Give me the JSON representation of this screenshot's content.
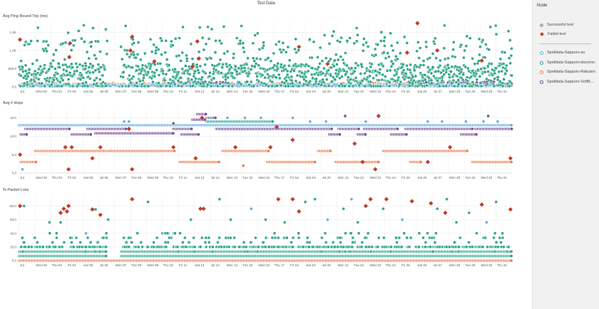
{
  "page_title": "Test Data",
  "legend": {
    "title": "Node",
    "status_items": [
      {
        "label": "Successful test",
        "marker": "circle",
        "color": "#aaaaaa"
      },
      {
        "label": "Failed test",
        "marker": "diamond",
        "color": "#c0392b"
      }
    ],
    "series_items": [
      {
        "label": "Spelldata-Sapporo-au",
        "color": "#5ba4dc"
      },
      {
        "label": "Spelldata-Sapporo-docomo",
        "color": "#1f9e80"
      },
      {
        "label": "Spelldata-Sapporo-Rakuten",
        "color": "#e8743b"
      },
      {
        "label": "Spelldata-Sapporo-SoftB...",
        "color": "#6b3d8a"
      }
    ]
  },
  "chart_data": [
    {
      "type": "scatter",
      "title": "Avg Ping Round Trip (ms)",
      "x_ticks": [
        "Jul",
        "Wed 02",
        "Thu 03",
        "Fri 04",
        "Sat 05",
        "Jul 06",
        "Mon 07",
        "Tue 08",
        "Wed 09",
        "Thu 10",
        "Fri 11",
        "Sat 12",
        "Jul 13",
        "Mon 14",
        "Tue 15",
        "Wed 16",
        "Thu 17",
        "Fri 18",
        "Sat 19",
        "Jul 20",
        "Mon 21",
        "Tue 22",
        "Wed 23",
        "Thu 24",
        "Fri 25",
        "Sat 26",
        "Jul 27",
        "Mon 28",
        "Tue 29",
        "Wed 30",
        "Thu 31"
      ],
      "xlim": [
        0,
        31
      ],
      "y_ticks": [
        "0.0",
        "500.0",
        "1.0K",
        "1.5K"
      ],
      "y_tick_values": [
        0,
        500,
        1000,
        1500
      ],
      "ylim": [
        0,
        1800
      ],
      "series": [
        {
          "name": "Spelldata-Sapporo-au",
          "color": "#5ba4dc",
          "band_days": [
            [
              0,
              31
            ]
          ],
          "base": 40,
          "spread": 25
        },
        {
          "name": "Spelldata-Sapporo-docomo",
          "color": "#1f9e80",
          "band_days": [
            [
              0,
              5.5
            ],
            [
              6.4,
              31
            ]
          ],
          "base": 300,
          "spread": 350
        },
        {
          "name": "Spelldata-Sapporo-Rakuten",
          "color": "#e8743b",
          "band_days": [
            [
              0,
              31
            ]
          ],
          "base": 60,
          "spread": 40
        },
        {
          "name": "Spelldata-Sapporo-SoftB...",
          "color": "#6b3d8a",
          "band_days": [
            [
              10,
              13
            ],
            [
              24.5,
              31
            ]
          ],
          "base": 80,
          "spread": 60
        }
      ],
      "failed_points": [
        {
          "x": 0.05,
          "y": 1300
        },
        {
          "x": 3.2,
          "y": 1200
        },
        {
          "x": 3.15,
          "y": 820
        },
        {
          "x": 7.1,
          "y": 1380
        },
        {
          "x": 7.0,
          "y": 1000
        },
        {
          "x": 8.5,
          "y": 700
        },
        {
          "x": 10.9,
          "y": 560
        },
        {
          "x": 11.2,
          "y": 1250
        },
        {
          "x": 17.6,
          "y": 1100
        },
        {
          "x": 19.4,
          "y": 630
        },
        {
          "x": 24.4,
          "y": 940
        },
        {
          "x": 25.05,
          "y": 1750
        },
        {
          "x": 26.3,
          "y": 1000
        },
        {
          "x": 29.1,
          "y": 720
        },
        {
          "x": 11.3,
          "y": 780
        }
      ]
    },
    {
      "type": "scatter",
      "title": "Avg # Hops",
      "x_ticks": [
        "Jul",
        "Wed 02",
        "Thu 03",
        "Fri 04",
        "Sat 05",
        "Jul 06",
        "Mon 07",
        "Tue 08",
        "Wed 09",
        "Thu 10",
        "Fri 11",
        "Sat 12",
        "Jul 13",
        "Mon 14",
        "Tue 15",
        "Wed 16",
        "Thu 17",
        "Fri 18",
        "Sat 19",
        "Jul 20",
        "Mon 21",
        "Tue 22",
        "Wed 23",
        "Thu 24",
        "Fri 25",
        "Sat 26",
        "Jul 27",
        "Mon 28",
        "Tue 29",
        "Wed 30",
        "Thu 31"
      ],
      "xlim": [
        0,
        31
      ],
      "y_ticks": [
        "0.0",
        "5.0",
        "10.0",
        "15.0"
      ],
      "y_tick_values": [
        0,
        5,
        10,
        15
      ],
      "ylim": [
        0,
        18
      ],
      "segments": [
        {
          "series": "Spelldata-Sapporo-au",
          "color": "#5ba4dc",
          "x0": 0,
          "x1": 31,
          "y": 13
        },
        {
          "series": "Spelldata-Sapporo-docomo",
          "color": "#1f9e80",
          "x0": 11.8,
          "x1": 12.4,
          "y": 14
        },
        {
          "series": "Spelldata-Sapporo-docomo",
          "color": "#1f9e80",
          "x0": 12.1,
          "x1": 16,
          "y": 14
        },
        {
          "series": "Spelldata-Sapporo-docomo",
          "color": "#1f9e80",
          "x0": 12.6,
          "x1": 15.8,
          "y": 11.8
        },
        {
          "series": "Spelldata-Sapporo-Rakuten",
          "color": "#e8743b",
          "x0": 0.1,
          "x1": 1.1,
          "y": 3
        },
        {
          "series": "Spelldata-Sapporo-Rakuten",
          "color": "#e8743b",
          "x0": 1,
          "x1": 9.8,
          "y": 6
        },
        {
          "series": "Spelldata-Sapporo-Rakuten",
          "color": "#e8743b",
          "x0": 10.1,
          "x1": 12.6,
          "y": 3
        },
        {
          "series": "Spelldata-Sapporo-Rakuten",
          "color": "#e8743b",
          "x0": 12.8,
          "x1": 15.7,
          "y": 6
        },
        {
          "series": "Spelldata-Sapporo-Rakuten",
          "color": "#e8743b",
          "x0": 15.6,
          "x1": 18.6,
          "y": 3
        },
        {
          "series": "Spelldata-Sapporo-Rakuten",
          "color": "#e8743b",
          "x0": 18.8,
          "x1": 19.6,
          "y": 6
        },
        {
          "series": "Spelldata-Sapporo-Rakuten",
          "color": "#e8743b",
          "x0": 19.9,
          "x1": 22.6,
          "y": 3
        },
        {
          "series": "Spelldata-Sapporo-Rakuten",
          "color": "#e8743b",
          "x0": 22.9,
          "x1": 28.2,
          "y": 6
        },
        {
          "series": "Spelldata-Sapporo-Rakuten",
          "color": "#e8743b",
          "x0": 28.5,
          "x1": 31,
          "y": 3
        },
        {
          "series": "Spelldata-Sapporo-Rakuten",
          "color": "#e8743b",
          "x0": 24.6,
          "x1": 25.3,
          "y": 3
        },
        {
          "series": "Spelldata-Sapporo-SoftB...",
          "color": "#6b3d8a",
          "x0": 0.1,
          "x1": 0.5,
          "y": 10.5
        },
        {
          "series": "Spelldata-Sapporo-SoftB...",
          "color": "#6b3d8a",
          "x0": 0.4,
          "x1": 3.2,
          "y": 12
        },
        {
          "series": "Spelldata-Sapporo-SoftB...",
          "color": "#6b3d8a",
          "x0": 3.3,
          "x1": 4.5,
          "y": 10.5
        },
        {
          "series": "Spelldata-Sapporo-SoftB...",
          "color": "#6b3d8a",
          "x0": 4.3,
          "x1": 6.7,
          "y": 12
        },
        {
          "series": "Spelldata-Sapporo-SoftB...",
          "color": "#6b3d8a",
          "x0": 4.8,
          "x1": 7.4,
          "y": 10.8
        },
        {
          "series": "Spelldata-Sapporo-SoftB...",
          "color": "#6b3d8a",
          "x0": 7.4,
          "x1": 9.7,
          "y": 10.8
        },
        {
          "series": "Spelldata-Sapporo-SoftB...",
          "color": "#6b3d8a",
          "x0": 9.7,
          "x1": 10.9,
          "y": 12
        },
        {
          "series": "Spelldata-Sapporo-SoftB...",
          "color": "#6b3d8a",
          "x0": 10.2,
          "x1": 11.3,
          "y": 10.5
        },
        {
          "series": "Spelldata-Sapporo-SoftB...",
          "color": "#6b3d8a",
          "x0": 10.9,
          "x1": 11.7,
          "y": 14.5
        },
        {
          "series": "Spelldata-Sapporo-SoftB...",
          "color": "#6b3d8a",
          "x0": 11.2,
          "x1": 11.8,
          "y": 16
        },
        {
          "series": "Spelldata-Sapporo-SoftB...",
          "color": "#6b3d8a",
          "x0": 11.8,
          "x1": 12.4,
          "y": 15
        },
        {
          "series": "Spelldata-Sapporo-SoftB...",
          "color": "#6b3d8a",
          "x0": 12.4,
          "x1": 19.7,
          "y": 12
        },
        {
          "series": "Spelldata-Sapporo-SoftB...",
          "color": "#6b3d8a",
          "x0": 19.5,
          "x1": 20.2,
          "y": 10.5
        },
        {
          "series": "Spelldata-Sapporo-SoftB...",
          "color": "#6b3d8a",
          "x0": 20.1,
          "x1": 21.4,
          "y": 12
        },
        {
          "series": "Spelldata-Sapporo-SoftB...",
          "color": "#6b3d8a",
          "x0": 21.3,
          "x1": 21.8,
          "y": 10.5
        },
        {
          "series": "Spelldata-Sapporo-SoftB...",
          "color": "#6b3d8a",
          "x0": 21.7,
          "x1": 23.8,
          "y": 12
        },
        {
          "series": "Spelldata-Sapporo-SoftB...",
          "color": "#6b3d8a",
          "x0": 23.4,
          "x1": 24.4,
          "y": 10.5
        },
        {
          "series": "Spelldata-Sapporo-SoftB...",
          "color": "#6b3d8a",
          "x0": 24.3,
          "x1": 28.5,
          "y": 12
        },
        {
          "series": "Spelldata-Sapporo-SoftB...",
          "color": "#6b3d8a",
          "x0": 27.8,
          "x1": 28.8,
          "y": 10.5
        },
        {
          "series": "Spelldata-Sapporo-SoftB...",
          "color": "#6b3d8a",
          "x0": 28.7,
          "x1": 31,
          "y": 12
        }
      ],
      "successful_points": [
        {
          "x": 0.2,
          "y": 1,
          "color": "#5ba4dc"
        },
        {
          "x": 6.6,
          "y": 14,
          "color": "#5ba4dc"
        },
        {
          "x": 6.9,
          "y": 14,
          "color": "#5ba4dc"
        },
        {
          "x": 11.9,
          "y": 15,
          "color": "#5ba4dc"
        },
        {
          "x": 13.1,
          "y": 15,
          "color": "#5ba4dc"
        },
        {
          "x": 14.2,
          "y": 15,
          "color": "#5ba4dc"
        },
        {
          "x": 15.2,
          "y": 15,
          "color": "#5ba4dc"
        },
        {
          "x": 17.2,
          "y": 15,
          "color": "#5ba4dc"
        },
        {
          "x": 18.3,
          "y": 14,
          "color": "#5ba4dc"
        },
        {
          "x": 19.3,
          "y": 14,
          "color": "#5ba4dc"
        },
        {
          "x": 21.8,
          "y": 14,
          "color": "#5ba4dc"
        },
        {
          "x": 25.7,
          "y": 14,
          "color": "#5ba4dc"
        },
        {
          "x": 26.6,
          "y": 14,
          "color": "#5ba4dc"
        },
        {
          "x": 28.1,
          "y": 14,
          "color": "#5ba4dc"
        },
        {
          "x": 29.2,
          "y": 14,
          "color": "#5ba4dc"
        },
        {
          "x": 30.1,
          "y": 14,
          "color": "#5ba4dc"
        },
        {
          "x": 14.1,
          "y": 2,
          "color": "#e8743b"
        },
        {
          "x": 20.5,
          "y": 15.5,
          "color": "#6b3d8a"
        },
        {
          "x": 29.5,
          "y": 15.5,
          "color": "#6b3d8a"
        },
        {
          "x": 9.7,
          "y": 13.5,
          "color": "#6b3d8a"
        }
      ],
      "failed_points": [
        {
          "x": 0.05,
          "y": 5
        },
        {
          "x": 2.9,
          "y": 7
        },
        {
          "x": 3.3,
          "y": 7
        },
        {
          "x": 3.1,
          "y": 1
        },
        {
          "x": 4.6,
          "y": 4
        },
        {
          "x": 5.1,
          "y": 7
        },
        {
          "x": 6.9,
          "y": 12
        },
        {
          "x": 7.1,
          "y": 1
        },
        {
          "x": 9.7,
          "y": 7
        },
        {
          "x": 11.1,
          "y": 4
        },
        {
          "x": 11.5,
          "y": 15
        },
        {
          "x": 13.6,
          "y": 7
        },
        {
          "x": 15.8,
          "y": 7
        },
        {
          "x": 16.2,
          "y": 12.5
        },
        {
          "x": 17.2,
          "y": 9
        },
        {
          "x": 21.1,
          "y": 8
        },
        {
          "x": 21.6,
          "y": 3
        },
        {
          "x": 22.4,
          "y": 1
        },
        {
          "x": 22.6,
          "y": 15.5
        },
        {
          "x": 25.7,
          "y": 3
        },
        {
          "x": 27.1,
          "y": 7
        },
        {
          "x": 30.9,
          "y": 4
        }
      ]
    },
    {
      "type": "scatter",
      "title": "% Packet Loss",
      "x_ticks": [
        "Jul",
        "Wed 02",
        "Thu 03",
        "Fri 04",
        "Sat 05",
        "Jul 06",
        "Mon 07",
        "Tue 08",
        "Wed 09",
        "Thu 10",
        "Fri 11",
        "Sat 12",
        "Jul 13",
        "Mon 14",
        "Tue 15",
        "Wed 16",
        "Thu 17",
        "Fri 18",
        "Sat 19",
        "Jul 20",
        "Mon 21",
        "Tue 22",
        "Wed 23",
        "Thu 24",
        "Fri 25",
        "Sat 26",
        "Jul 27",
        "Mon 28",
        "Tue 29",
        "Wed 30",
        "Thu 31"
      ],
      "xlim": [
        0,
        31
      ],
      "y_ticks": [
        "0.0",
        "20.0",
        "40.0",
        "60.0",
        "80.0"
      ],
      "y_tick_values": [
        0,
        20,
        40,
        60,
        80
      ],
      "ylim": [
        0,
        96
      ],
      "levels": [
        0,
        6.7,
        13.3,
        20
      ],
      "gap_days": [
        [
          5.5,
          6.4
        ]
      ],
      "failed_points": [
        {
          "x": 0.05,
          "y": 80
        },
        {
          "x": 2.6,
          "y": 70
        },
        {
          "x": 2.8,
          "y": 76
        },
        {
          "x": 3.1,
          "y": 80
        },
        {
          "x": 3.0,
          "y": 72
        },
        {
          "x": 4.6,
          "y": 75
        },
        {
          "x": 5.1,
          "y": 67
        },
        {
          "x": 7.1,
          "y": 90
        },
        {
          "x": 11.4,
          "y": 76
        },
        {
          "x": 11.6,
          "y": 76
        },
        {
          "x": 16.3,
          "y": 90
        },
        {
          "x": 17.2,
          "y": 90
        },
        {
          "x": 17.6,
          "y": 72
        },
        {
          "x": 22.1,
          "y": 90
        },
        {
          "x": 23.1,
          "y": 90
        },
        {
          "x": 24.7,
          "y": 87
        },
        {
          "x": 25.9,
          "y": 84
        },
        {
          "x": 26.8,
          "y": 70
        },
        {
          "x": 29.1,
          "y": 82
        },
        {
          "x": 30.9,
          "y": 75
        },
        {
          "x": 21.8,
          "y": 80
        }
      ],
      "high_points": [
        {
          "x": 0.3,
          "y": 80
        },
        {
          "x": 1.9,
          "y": 56
        },
        {
          "x": 2.6,
          "y": 56
        },
        {
          "x": 4.2,
          "y": 40
        },
        {
          "x": 4.8,
          "y": 75
        },
        {
          "x": 5.6,
          "y": 60
        },
        {
          "x": 8.1,
          "y": 86
        },
        {
          "x": 9.0,
          "y": 40
        },
        {
          "x": 9.8,
          "y": 40
        },
        {
          "x": 10.8,
          "y": 60
        },
        {
          "x": 13.3,
          "y": 60
        },
        {
          "x": 14.6,
          "y": 76
        },
        {
          "x": 15.5,
          "y": 60
        },
        {
          "x": 16.7,
          "y": 56
        },
        {
          "x": 18.6,
          "y": 90
        },
        {
          "x": 19.4,
          "y": 60
        },
        {
          "x": 20.4,
          "y": 76
        },
        {
          "x": 21.3,
          "y": 56
        },
        {
          "x": 22.9,
          "y": 76
        },
        {
          "x": 24.1,
          "y": 60
        },
        {
          "x": 26.3,
          "y": 76
        },
        {
          "x": 27.5,
          "y": 56
        },
        {
          "x": 28.3,
          "y": 70
        },
        {
          "x": 29.4,
          "y": 56
        },
        {
          "x": 30.4,
          "y": 40
        },
        {
          "x": 30.0,
          "y": 86
        },
        {
          "x": 12.6,
          "y": 90
        },
        {
          "x": 20.9,
          "y": 90
        },
        {
          "x": 26.9,
          "y": 90
        },
        {
          "x": 18.0,
          "y": 86
        }
      ]
    }
  ]
}
